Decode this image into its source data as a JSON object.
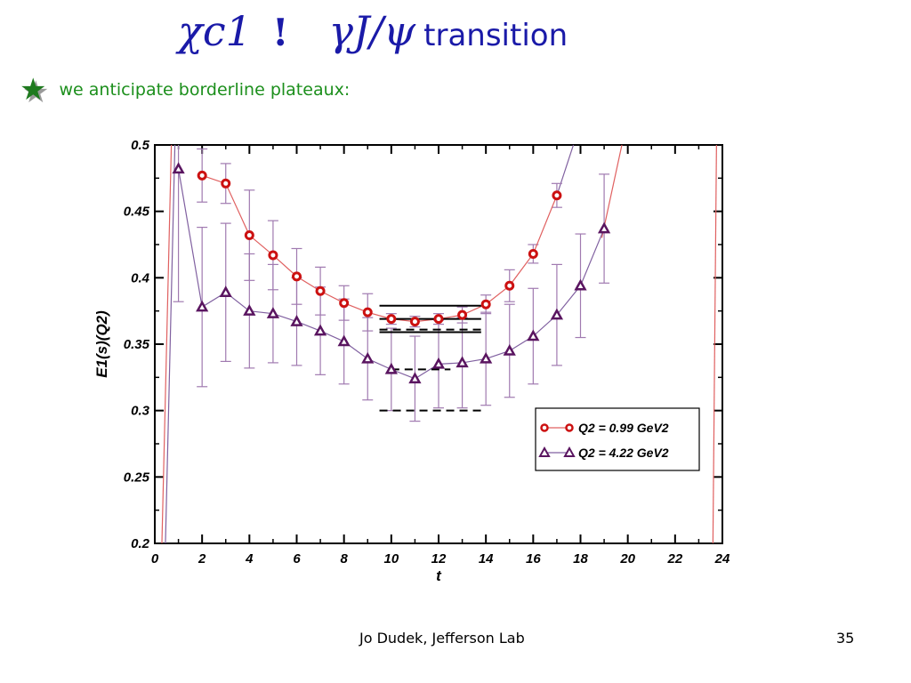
{
  "slide": {
    "title_chi": "χc1",
    "title_symbol": "!",
    "title_gamma": "γJ/ψ",
    "title_word": "transition",
    "bullet": "we anticipate borderline plateaux:",
    "footer_author": "Jo Dudek, Jefferson Lab",
    "page_number": "35"
  },
  "colors": {
    "title": "#1a1aa8",
    "bullet_text": "#1c8f1c",
    "star": "#1f7a1f",
    "series1": "#cc1111",
    "series2": "#5a1560",
    "error_bars": "#a07ab0",
    "series1_line": "#e06060",
    "series2_line": "#8060a0"
  },
  "chart_data": {
    "type": "scatter",
    "xlabel": "t",
    "ylabel": "E1(s)(Q2)",
    "xlim": [
      0,
      24
    ],
    "ylim": [
      0.2,
      0.5
    ],
    "xticks": [
      "0",
      "2",
      "4",
      "6",
      "8",
      "10",
      "12",
      "14",
      "16",
      "18",
      "20",
      "22",
      "24"
    ],
    "yticks": [
      "0.2",
      "0.25",
      "0.3",
      "0.35",
      "0.4",
      "0.45",
      "0.5"
    ],
    "legend_position": "lower-right",
    "series": [
      {
        "name": "Q2 = 0.99 GeV2",
        "marker": "circle",
        "x": [
          2,
          3,
          4,
          5,
          6,
          7,
          8,
          9,
          10,
          11,
          12,
          13,
          14,
          15,
          16,
          17
        ],
        "y": [
          0.477,
          0.471,
          0.432,
          0.417,
          0.401,
          0.39,
          0.381,
          0.374,
          0.369,
          0.367,
          0.369,
          0.372,
          0.38,
          0.394,
          0.418,
          0.462
        ],
        "yerr": [
          0.02,
          0.015,
          0.034,
          0.026,
          0.021,
          0.018,
          0.013,
          0.014,
          0.004,
          0.004,
          0.004,
          0.006,
          0.007,
          0.012,
          0.007,
          0.009
        ]
      },
      {
        "name": "Q2 = 4.22 GeV2",
        "marker": "triangle",
        "x": [
          1,
          2,
          3,
          4,
          5,
          6,
          7,
          8,
          9,
          10,
          11,
          12,
          13,
          14,
          15,
          16,
          17,
          18,
          19
        ],
        "y": [
          0.482,
          0.378,
          0.389,
          0.375,
          0.373,
          0.367,
          0.36,
          0.352,
          0.339,
          0.331,
          0.324,
          0.335,
          0.336,
          0.339,
          0.345,
          0.356,
          0.372,
          0.394,
          0.437
        ],
        "yerr": [
          0.1,
          0.06,
          0.052,
          0.043,
          0.037,
          0.033,
          0.033,
          0.032,
          0.031,
          0.031,
          0.032,
          0.033,
          0.034,
          0.035,
          0.035,
          0.036,
          0.038,
          0.039,
          0.041
        ]
      }
    ],
    "band_lines": [
      {
        "x": [
          9.5,
          13.8
        ],
        "y": 0.379,
        "style": "solid"
      },
      {
        "x": [
          9.5,
          13.8
        ],
        "y": 0.369,
        "style": "solid"
      },
      {
        "x": [
          9.5,
          13.8
        ],
        "y": 0.359,
        "style": "solid"
      },
      {
        "x": [
          9.5,
          13.8
        ],
        "y": 0.361,
        "style": "dashed"
      },
      {
        "x": [
          10.0,
          12.5
        ],
        "y": 0.331,
        "style": "dashed"
      },
      {
        "x": [
          9.5,
          13.8
        ],
        "y": 0.3,
        "style": "dashed"
      }
    ],
    "edge_lines": [
      {
        "x": [
          0.3,
          0.7
        ],
        "y": [
          0.2,
          0.5
        ]
      },
      {
        "x": [
          0.45,
          0.85
        ],
        "y": [
          0.2,
          0.5
        ]
      },
      {
        "x": [
          18.9,
          19.75
        ],
        "y": [
          0.43,
          0.5
        ]
      },
      {
        "x": [
          17.0,
          17.7
        ],
        "y": [
          0.462,
          0.5
        ]
      },
      {
        "x": [
          23.6,
          23.75
        ],
        "y": [
          0.2,
          0.5
        ]
      }
    ]
  }
}
